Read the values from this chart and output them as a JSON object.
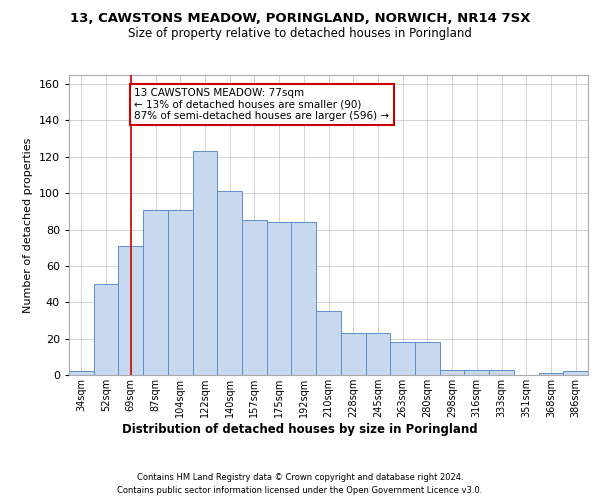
{
  "title_line1": "13, CAWSTONS MEADOW, PORINGLAND, NORWICH, NR14 7SX",
  "title_line2": "Size of property relative to detached houses in Poringland",
  "xlabel": "Distribution of detached houses by size in Poringland",
  "ylabel": "Number of detached properties",
  "categories": [
    "34sqm",
    "52sqm",
    "69sqm",
    "87sqm",
    "104sqm",
    "122sqm",
    "140sqm",
    "157sqm",
    "175sqm",
    "192sqm",
    "210sqm",
    "228sqm",
    "245sqm",
    "263sqm",
    "280sqm",
    "298sqm",
    "316sqm",
    "333sqm",
    "351sqm",
    "368sqm",
    "386sqm"
  ],
  "values": [
    2,
    50,
    71,
    91,
    91,
    123,
    101,
    85,
    84,
    84,
    35,
    23,
    23,
    18,
    18,
    3,
    3,
    3,
    0,
    1,
    2
  ],
  "bar_color": "#c8d8ef",
  "bar_edge_color": "#5b8fc9",
  "vline_x": 2.0,
  "vline_color": "#cc0000",
  "annotation_text": "13 CAWSTONS MEADOW: 77sqm\n← 13% of detached houses are smaller (90)\n87% of semi-detached houses are larger (596) →",
  "annotation_box_color": "#ffffff",
  "annotation_box_edge_color": "#cc0000",
  "ylim": [
    0,
    165
  ],
  "yticks": [
    0,
    20,
    40,
    60,
    80,
    100,
    120,
    140,
    160
  ],
  "footer_line1": "Contains HM Land Registry data © Crown copyright and database right 2024.",
  "footer_line2": "Contains public sector information licensed under the Open Government Licence v3.0.",
  "bg_color": "#ffffff",
  "grid_color": "#cccccc"
}
